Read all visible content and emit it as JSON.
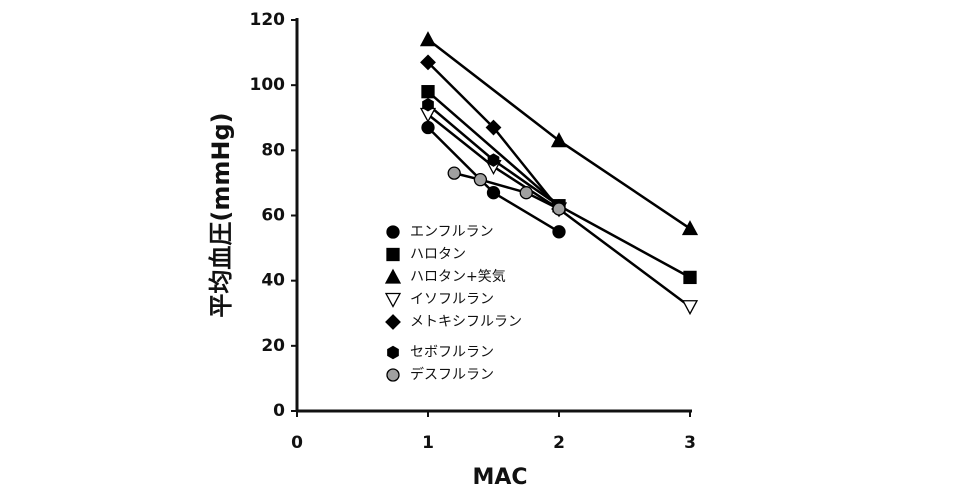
{
  "chart_data": {
    "type": "line",
    "xlabel": "MAC",
    "ylabel": "平均血圧(mmHg)",
    "xlim": [
      0,
      3
    ],
    "xticks": [
      0,
      1,
      2,
      3
    ],
    "ylim": [
      0,
      120
    ],
    "yticks": [
      0,
      20,
      40,
      60,
      80,
      100,
      120
    ],
    "series": [
      {
        "name": "エンフルラン",
        "color": "#000000",
        "marker": "circle",
        "x": [
          1,
          1.5,
          2
        ],
        "values": [
          87,
          67,
          55
        ]
      },
      {
        "name": "ハロタン",
        "color": "#000000",
        "marker": "square",
        "x": [
          1,
          2,
          3
        ],
        "values": [
          98,
          63,
          41
        ]
      },
      {
        "name": "ハロタン+笑気",
        "color": "#000000",
        "marker": "triangle",
        "x": [
          1,
          2,
          3
        ],
        "values": [
          114,
          83,
          56
        ]
      },
      {
        "name": "イソフルラン",
        "color": "#ffffff",
        "marker": "triangle-down",
        "x": [
          1,
          1.5,
          2,
          3
        ],
        "values": [
          91,
          75,
          62,
          32
        ]
      },
      {
        "name": "メトキシフルラン",
        "color": "#000000",
        "marker": "diamond",
        "x": [
          1,
          1.5,
          2
        ],
        "values": [
          107,
          87,
          62
        ]
      },
      {
        "name": "セボフルラン",
        "color": "#000000",
        "marker": "hexagon",
        "x": [
          1,
          1.5,
          2
        ],
        "values": [
          94,
          77,
          63
        ]
      },
      {
        "name": "デスフルラン",
        "color": "#a0a0a0",
        "marker": "circle",
        "x": [
          1.2,
          1.4,
          1.75,
          2
        ],
        "values": [
          73,
          71,
          67,
          62
        ]
      }
    ]
  }
}
